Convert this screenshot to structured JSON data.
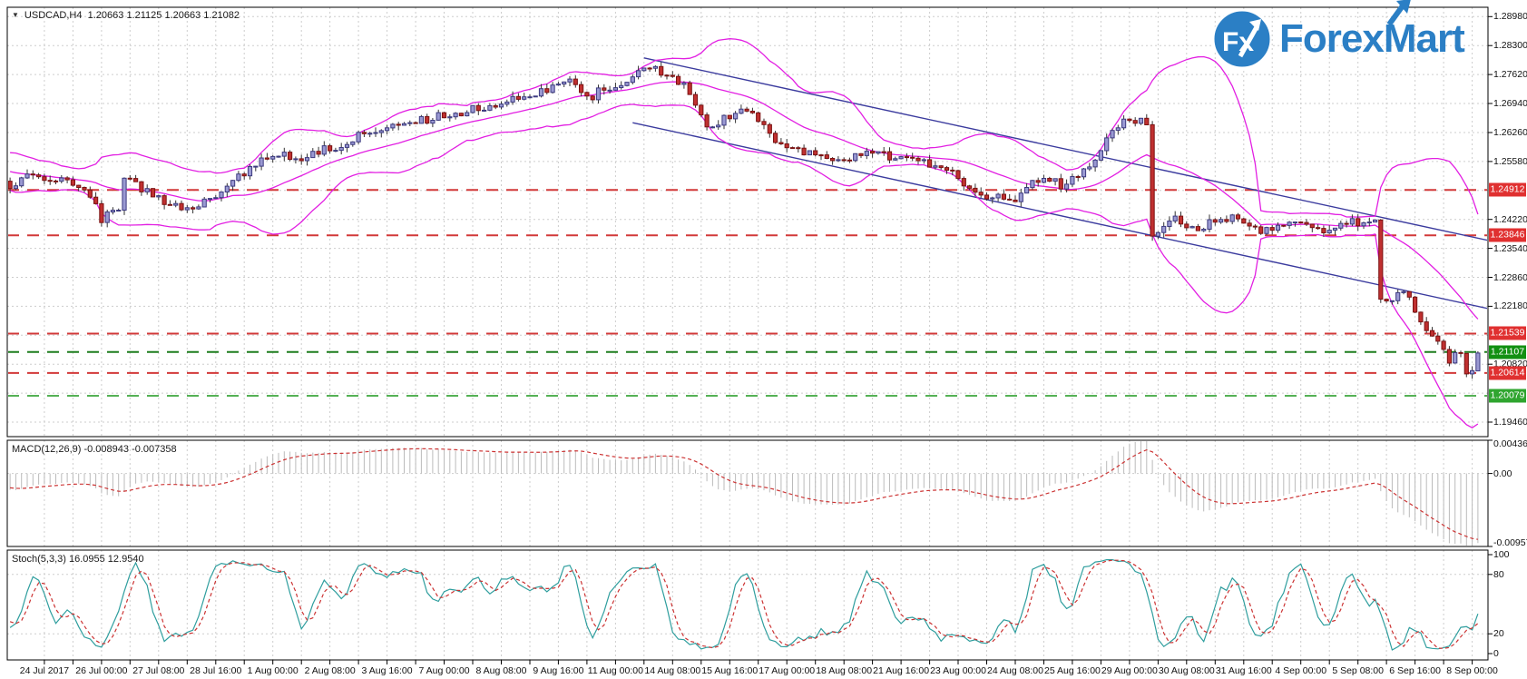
{
  "window": {
    "dropdown_icon": "▼",
    "symbol": "USDCAD,H4",
    "ohlc": "1.20663 1.21125 1.20663 1.21082"
  },
  "logo": {
    "circle_text": "Fx",
    "part1": "Forex",
    "part2": "Mart",
    "brand_color": "#2b7fc5"
  },
  "macd": {
    "label": "MACD(12,26,9) -0.008943 -0.007358",
    "current_macd": -0.008943,
    "current_signal": -0.007358,
    "scale_labels": [
      "0.004366",
      "0.00",
      "-0.009577"
    ]
  },
  "stoch": {
    "label": "Stoch(5,3,3) 16.0955 12.9540",
    "current_k": 16.0955,
    "current_d": 12.954,
    "scale_labels": [
      "100",
      "80",
      "20",
      "0"
    ]
  },
  "chart_data": {
    "type": "candlestick",
    "symbol": "USDCAD",
    "timeframe": "H4",
    "current_bar": {
      "open": 1.20663,
      "high": 1.21125,
      "low": 1.20663,
      "close": 1.21082
    },
    "y_axis": {
      "max": 1.292,
      "min": 1.1912,
      "tick_start": 1.2898,
      "tick_step": 0.0068,
      "tick_count": 15,
      "visible_labels": [
        "1.28980",
        "1.28300",
        "1.27620",
        "1.26940",
        "1.26260",
        "1.25580",
        "1.24220",
        "1.23540",
        "1.22860",
        "1.22180",
        "1.20820",
        "1.19460"
      ]
    },
    "candle_count": 258,
    "warmup_start": 1.2592,
    "warmup_end": 1.2506,
    "noise": 0.0022,
    "wick": 0.0012,
    "price_path": [
      [
        0,
        1.2505
      ],
      [
        4,
        1.2522
      ],
      [
        8,
        1.2515
      ],
      [
        12,
        1.25
      ],
      [
        15,
        1.2455
      ],
      [
        16,
        1.2425
      ],
      [
        18,
        1.2452
      ],
      [
        19,
        1.2448
      ],
      [
        20,
        1.2518
      ],
      [
        22,
        1.2505
      ],
      [
        26,
        1.2472
      ],
      [
        30,
        1.2446
      ],
      [
        34,
        1.2462
      ],
      [
        38,
        1.2496
      ],
      [
        42,
        1.2542
      ],
      [
        46,
        1.2576
      ],
      [
        50,
        1.2566
      ],
      [
        54,
        1.258
      ],
      [
        58,
        1.2596
      ],
      [
        62,
        1.2626
      ],
      [
        66,
        1.2645
      ],
      [
        70,
        1.2652
      ],
      [
        74,
        1.2661
      ],
      [
        78,
        1.2671
      ],
      [
        82,
        1.2683
      ],
      [
        86,
        1.2696
      ],
      [
        90,
        1.2711
      ],
      [
        94,
        1.2723
      ],
      [
        98,
        1.2746
      ],
      [
        100,
        1.2731
      ],
      [
        102,
        1.2713
      ],
      [
        104,
        1.2726
      ],
      [
        108,
        1.2751
      ],
      [
        112,
        1.2773
      ],
      [
        114,
        1.2769
      ],
      [
        116,
        1.2763
      ],
      [
        118,
        1.2736
      ],
      [
        120,
        1.2681
      ],
      [
        122,
        1.2633
      ],
      [
        124,
        1.2651
      ],
      [
        126,
        1.2669
      ],
      [
        128,
        1.2679
      ],
      [
        130,
        1.2676
      ],
      [
        132,
        1.2641
      ],
      [
        134,
        1.2613
      ],
      [
        137,
        1.2589
      ],
      [
        140,
        1.2573
      ],
      [
        144,
        1.2566
      ],
      [
        148,
        1.2573
      ],
      [
        152,
        1.2577
      ],
      [
        156,
        1.2563
      ],
      [
        160,
        1.2556
      ],
      [
        164,
        1.2541
      ],
      [
        168,
        1.2499
      ],
      [
        172,
        1.2473
      ],
      [
        176,
        1.2467
      ],
      [
        179,
        1.2511
      ],
      [
        181,
        1.2521
      ],
      [
        184,
        1.2501
      ],
      [
        187,
        1.2526
      ],
      [
        190,
        1.2556
      ],
      [
        192,
        1.2616
      ],
      [
        195,
        1.2649
      ],
      [
        197,
        1.2656
      ],
      [
        199,
        1.2643
      ],
      [
        200,
        1.2392
      ],
      [
        202,
        1.2409
      ],
      [
        204,
        1.2423
      ],
      [
        207,
        1.2399
      ],
      [
        210,
        1.2411
      ],
      [
        214,
        1.2423
      ],
      [
        217,
        1.2403
      ],
      [
        220,
        1.2393
      ],
      [
        223,
        1.2406
      ],
      [
        226,
        1.2409
      ],
      [
        229,
        1.2399
      ],
      [
        232,
        1.2403
      ],
      [
        235,
        1.2413
      ],
      [
        238,
        1.2416
      ],
      [
        239,
        1.2413
      ],
      [
        240,
        1.2233
      ],
      [
        242,
        1.2229
      ],
      [
        244,
        1.2259
      ],
      [
        246,
        1.2206
      ],
      [
        248,
        1.2159
      ],
      [
        250,
        1.2129
      ],
      [
        252,
        1.2083
      ],
      [
        253,
        1.2109
      ],
      [
        254,
        1.2113
      ],
      [
        255,
        1.2063
      ],
      [
        256,
        1.2068
      ],
      [
        257,
        1.21082
      ]
    ],
    "bollinger": {
      "period": 20,
      "deviation": 2.5,
      "color": "#e21fe2"
    },
    "channel": {
      "color": "#3b3b9e",
      "lines": [
        {
          "i0": 111,
          "p0": 1.2801,
          "i1": 259,
          "p1": 1.2372
        },
        {
          "i0": 109,
          "p0": 1.2649,
          "i1": 259,
          "p1": 1.2212
        }
      ]
    },
    "levels": [
      {
        "value": "1.24912",
        "price": 1.24912,
        "line_color": "#d23939",
        "badge_color": "#e03030"
      },
      {
        "value": "1.23846",
        "price": 1.23846,
        "line_color": "#d23939",
        "badge_color": "#e03030"
      },
      {
        "value": "1.21539",
        "price": 1.21539,
        "line_color": "#d23939",
        "badge_color": "#e03030"
      },
      {
        "value": "1.21107",
        "price": 1.21107,
        "line_color": "#1e7d1e",
        "badge_color": "#129012"
      },
      {
        "value": "1.20614",
        "price": 1.20614,
        "line_color": "#d23939",
        "badge_color": "#e03030"
      },
      {
        "value": "1.20079",
        "price": 1.20079,
        "line_color": "#55b155",
        "badge_color": "#2fa52f"
      }
    ],
    "macd_scale": {
      "top": 0.004366,
      "bottom": -0.009577,
      "fast": 12,
      "slow": 26,
      "signal": 9
    },
    "stoch_scale": {
      "levels": [
        100,
        80,
        20,
        0
      ],
      "k": 5,
      "d": 3,
      "slowing": 3
    },
    "time_labels": [
      "24 Jul 2017",
      "26 Jul 00:00",
      "27 Jul 08:00",
      "28 Jul 16:00",
      "1 Aug 00:00",
      "2 Aug 08:00",
      "3 Aug 16:00",
      "7 Aug 00:00",
      "8 Aug 08:00",
      "9 Aug 16:00",
      "11 Aug 00:00",
      "14 Aug 08:00",
      "15 Aug 16:00",
      "17 Aug 00:00",
      "18 Aug 08:00",
      "21 Aug 16:00",
      "23 Aug 00:00",
      "24 Aug 08:00",
      "25 Aug 16:00",
      "29 Aug 00:00",
      "30 Aug 08:00",
      "31 Aug 16:00",
      "4 Sep 00:00",
      "5 Sep 08:00",
      "6 Sep 16:00",
      "8 Sep 00:00"
    ],
    "colors": {
      "grid": "#cdcdcd",
      "candle_up_fill": "#9a99d2",
      "candle_up_border": "#3c3a80",
      "candle_down_fill": "#c03030",
      "candle_down_border": "#7a1212",
      "wick": "#333333",
      "macd_hist": "#bbbbbb",
      "macd_signal": "#cc3333",
      "stoch_k": "#2f9e9e",
      "stoch_d": "#cc3333",
      "border": "#000000"
    }
  }
}
